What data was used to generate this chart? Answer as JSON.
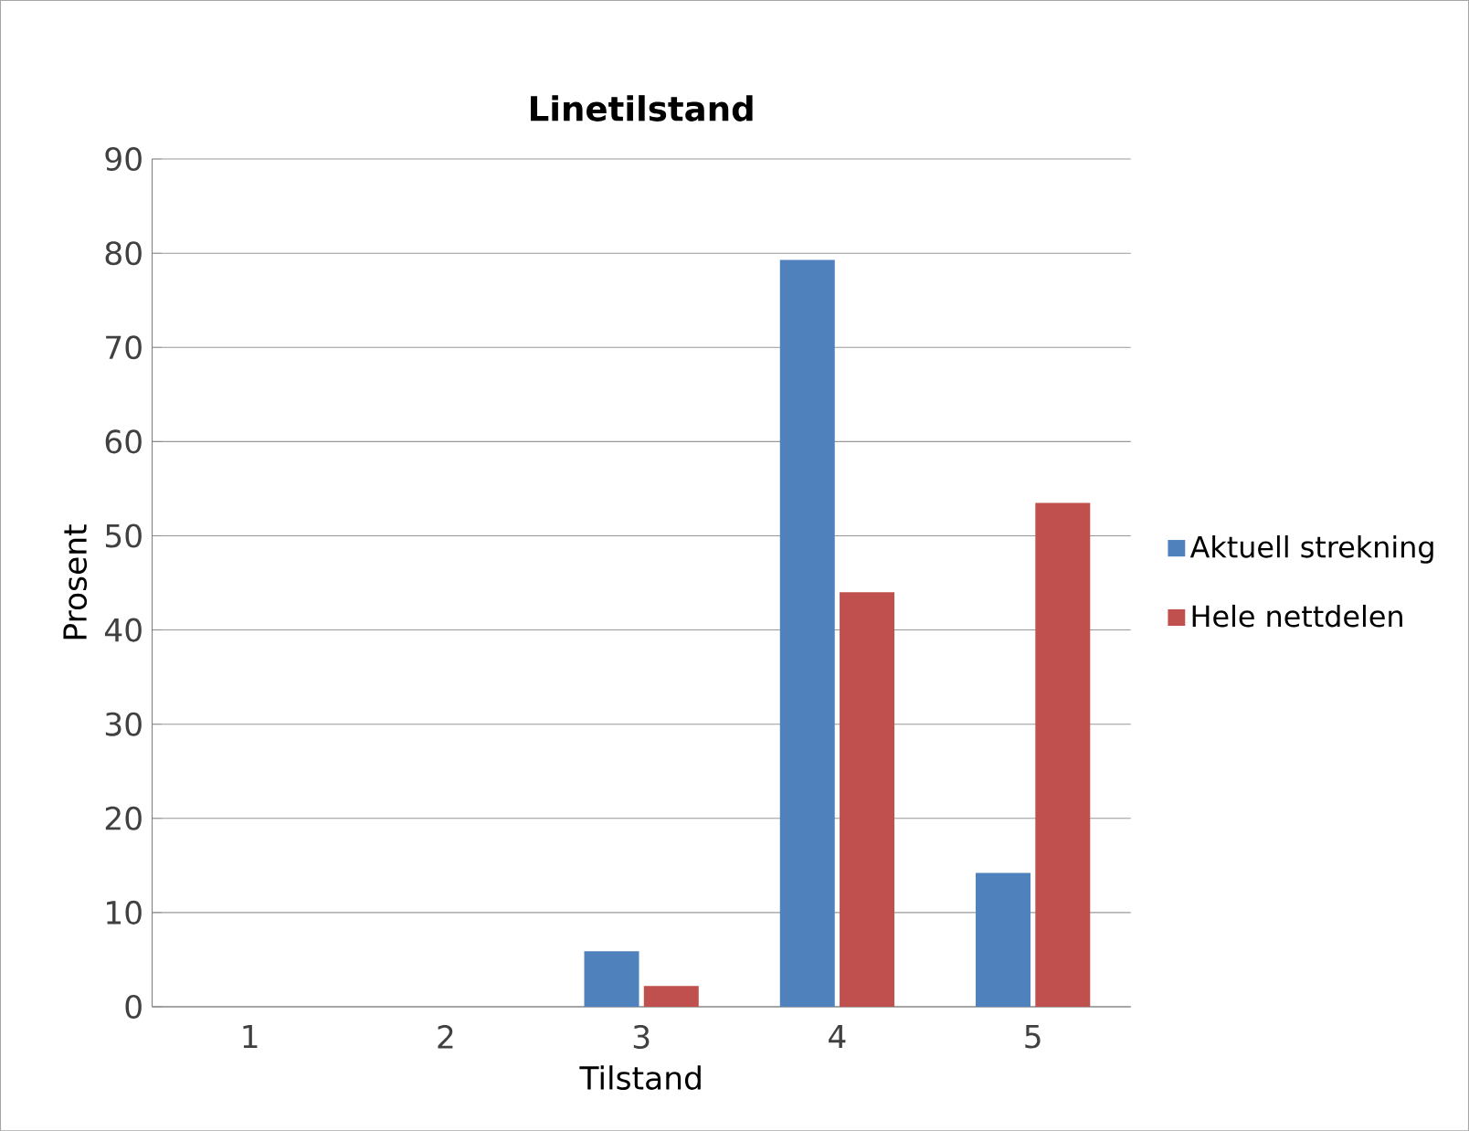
{
  "chart_data": {
    "type": "bar",
    "title": "Linetilstand",
    "xlabel": "Tilstand",
    "ylabel": "Prosent",
    "categories": [
      "1",
      "2",
      "3",
      "4",
      "5"
    ],
    "series": [
      {
        "name": "Aktuell strekning",
        "color": "#4f81bd",
        "values": [
          0,
          0,
          5.9,
          79.3,
          14.2
        ]
      },
      {
        "name": "Hele nettdelen",
        "color": "#c0504d",
        "values": [
          0,
          0,
          2.2,
          44.0,
          53.5
        ]
      }
    ],
    "ylim": [
      0,
      90
    ],
    "yticks": [
      0,
      10,
      20,
      30,
      40,
      50,
      60,
      70,
      80,
      90
    ],
    "grid": "y",
    "legend": "right"
  }
}
